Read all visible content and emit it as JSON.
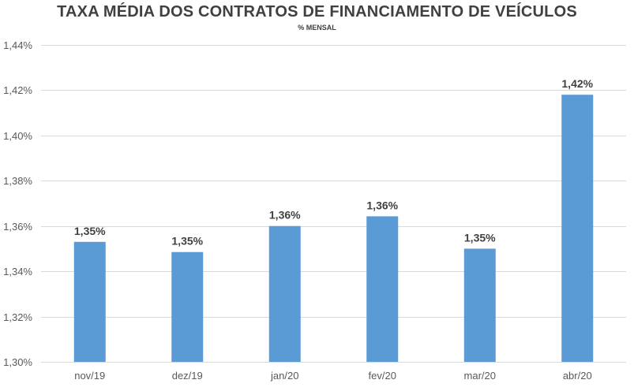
{
  "chart_data": {
    "type": "bar",
    "title": "TAXA MÉDIA DOS CONTRATOS DE FINANCIAMENTO DE VEÍCULOS",
    "subtitle": "% MENSAL",
    "categories": [
      "nov/19",
      "dez/19",
      "jan/20",
      "fev/20",
      "mar/20",
      "abr/20"
    ],
    "values": [
      1.353,
      1.3485,
      1.36,
      1.3643,
      1.35,
      1.418
    ],
    "data_labels": [
      "1,35%",
      "1,35%",
      "1,36%",
      "1,36%",
      "1,35%",
      "1,42%"
    ],
    "y_ticks": [
      1.3,
      1.32,
      1.34,
      1.36,
      1.38,
      1.4,
      1.42,
      1.44
    ],
    "y_tick_labels": [
      "1,30%",
      "1,32%",
      "1,34%",
      "1,36%",
      "1,38%",
      "1,40%",
      "1,42%",
      "1,44%"
    ],
    "ylim": [
      1.3,
      1.44
    ],
    "grid": true,
    "legend": "none",
    "bar_color": "#5B9BD5",
    "grid_color": "#D9D9D9"
  }
}
